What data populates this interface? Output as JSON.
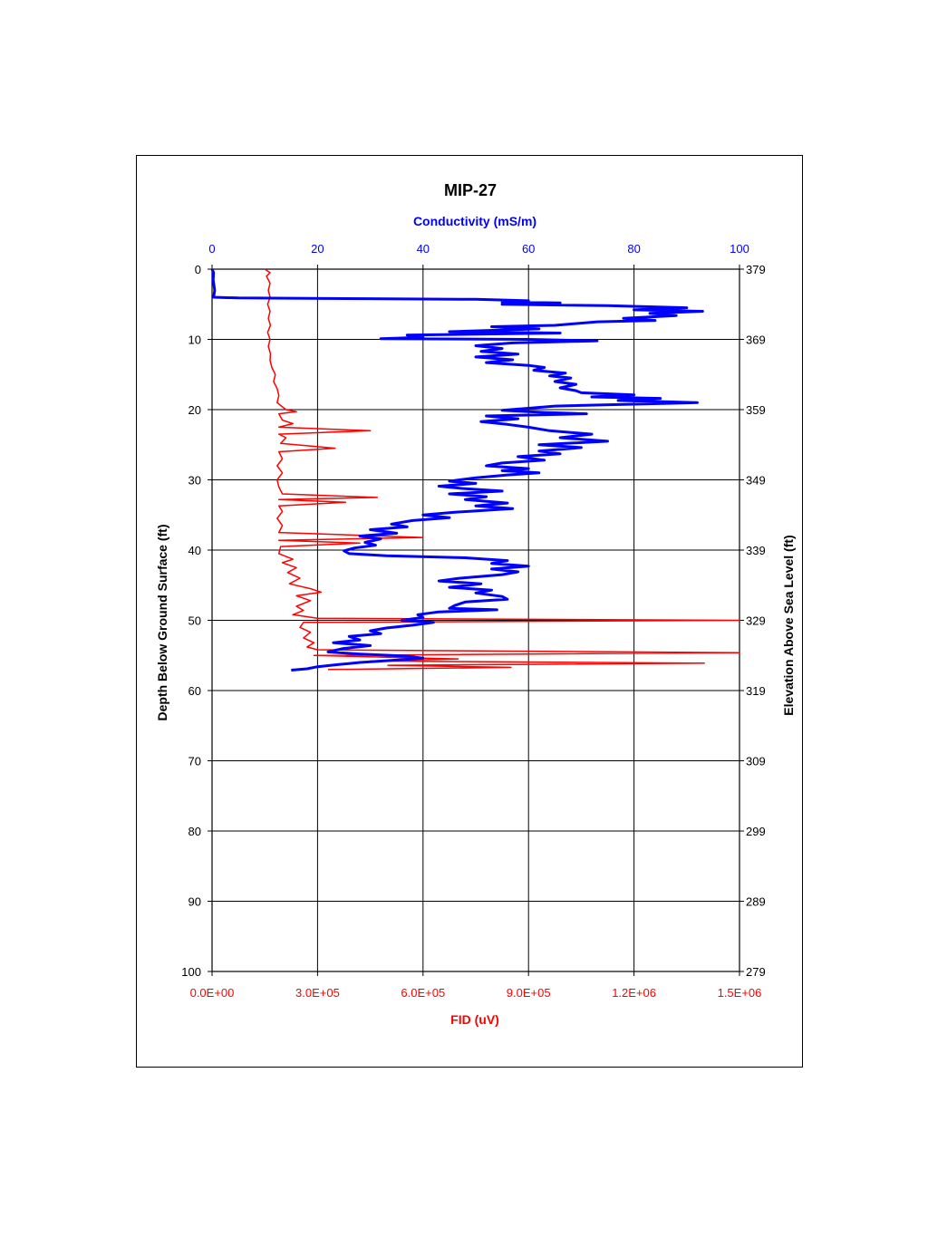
{
  "chart_data": {
    "type": "line",
    "title": "MIP-27",
    "top_axis": {
      "label": "Conductivity (mS/m)",
      "range": [
        0,
        100
      ],
      "ticks": [
        "0",
        "20",
        "40",
        "60",
        "80",
        "100"
      ],
      "color": "#0000ff"
    },
    "bottom_axis": {
      "label": "FID (uV)",
      "range": [
        0,
        1500000
      ],
      "ticks": [
        "0.0E+00",
        "3.0E+05",
        "6.0E+05",
        "9.0E+05",
        "1.2E+06",
        "1.5E+06"
      ],
      "color": "#ff0000"
    },
    "left_axis": {
      "label": "Depth Below Ground Surface (ft)",
      "range": [
        0,
        100
      ],
      "ticks": [
        "0",
        "10",
        "20",
        "30",
        "40",
        "50",
        "60",
        "70",
        "80",
        "90",
        "100"
      ],
      "inverted": true
    },
    "right_axis": {
      "label": "Elevation Above Sea Level (ft)",
      "ticks": [
        "379",
        "369",
        "359",
        "349",
        "339",
        "329",
        "319",
        "309",
        "299",
        "289",
        "279"
      ]
    },
    "grid": true,
    "series": [
      {
        "name": "Conductivity (mS/m)",
        "axis": "top",
        "color": "#0000ff",
        "points": [
          [
            0,
            0
          ],
          [
            0.3,
            0.5
          ],
          [
            0.2,
            1.5
          ],
          [
            0.5,
            3
          ],
          [
            0.3,
            4
          ],
          [
            5,
            4.1
          ],
          [
            30,
            4.2
          ],
          [
            50,
            4.3
          ],
          [
            60,
            4.5
          ],
          [
            55,
            4.7
          ],
          [
            66,
            4.8
          ],
          [
            55,
            5
          ],
          [
            75,
            5.2
          ],
          [
            90,
            5.5
          ],
          [
            80,
            5.8
          ],
          [
            93,
            6
          ],
          [
            83,
            6.3
          ],
          [
            88,
            6.6
          ],
          [
            78,
            7
          ],
          [
            84,
            7.3
          ],
          [
            73,
            7.5
          ],
          [
            65,
            8
          ],
          [
            53,
            8.2
          ],
          [
            62,
            8.5
          ],
          [
            45,
            8.9
          ],
          [
            66,
            9.1
          ],
          [
            37,
            9.4
          ],
          [
            40,
            9.7
          ],
          [
            32,
            9.9
          ],
          [
            60,
            10
          ],
          [
            73,
            10.2
          ],
          [
            57,
            10.5
          ],
          [
            50,
            10.9
          ],
          [
            55,
            11.3
          ],
          [
            51,
            11.7
          ],
          [
            58,
            12.1
          ],
          [
            50,
            12.5
          ],
          [
            57,
            12.9
          ],
          [
            52,
            13.3
          ],
          [
            60,
            13.7
          ],
          [
            63,
            14
          ],
          [
            61,
            14.4
          ],
          [
            67,
            14.8
          ],
          [
            64,
            15.2
          ],
          [
            68,
            15.5
          ],
          [
            65,
            16
          ],
          [
            69,
            16.4
          ],
          [
            66,
            16.9
          ],
          [
            69,
            17.3
          ],
          [
            70,
            17.6
          ],
          [
            80,
            17.9
          ],
          [
            72,
            18.2
          ],
          [
            85,
            18.4
          ],
          [
            77,
            18.7
          ],
          [
            92,
            19
          ],
          [
            65,
            19.5
          ],
          [
            60,
            19.8
          ],
          [
            55,
            20.1
          ],
          [
            63,
            20.4
          ],
          [
            71,
            20.6
          ],
          [
            52,
            20.9
          ],
          [
            58,
            21.3
          ],
          [
            51,
            21.7
          ],
          [
            56,
            22.1
          ],
          [
            60,
            22.5
          ],
          [
            64,
            23
          ],
          [
            72,
            23.5
          ],
          [
            66,
            24
          ],
          [
            75,
            24.5
          ],
          [
            62,
            25
          ],
          [
            70,
            25.4
          ],
          [
            62,
            25.9
          ],
          [
            66,
            26.3
          ],
          [
            58,
            26.7
          ],
          [
            63,
            27.2
          ],
          [
            55,
            27.6
          ],
          [
            52,
            28
          ],
          [
            60,
            28.4
          ],
          [
            55,
            28.7
          ],
          [
            62,
            29
          ],
          [
            56,
            29.3
          ],
          [
            50,
            29.7
          ],
          [
            45,
            30.2
          ],
          [
            50,
            30.5
          ],
          [
            43,
            30.9
          ],
          [
            47,
            31.2
          ],
          [
            55,
            31.6
          ],
          [
            45,
            32
          ],
          [
            52,
            32.4
          ],
          [
            48,
            32.8
          ],
          [
            56,
            33.3
          ],
          [
            50,
            33.7
          ],
          [
            57,
            34.1
          ],
          [
            46,
            34.6
          ],
          [
            40,
            35
          ],
          [
            45,
            35.4
          ],
          [
            38,
            35.8
          ],
          [
            34,
            36.3
          ],
          [
            37,
            36.7
          ],
          [
            30,
            37.1
          ],
          [
            35,
            37.6
          ],
          [
            28,
            38
          ],
          [
            32,
            38.4
          ],
          [
            29,
            38.9
          ],
          [
            31,
            39.3
          ],
          [
            27,
            39.7
          ],
          [
            25,
            40.1
          ],
          [
            26,
            40.5
          ],
          [
            33,
            40.8
          ],
          [
            48,
            41.1
          ],
          [
            56,
            41.5
          ],
          [
            53,
            41.9
          ],
          [
            60,
            42.3
          ],
          [
            53,
            42.7
          ],
          [
            58,
            43.1
          ],
          [
            55,
            43.5
          ],
          [
            47,
            44
          ],
          [
            43,
            44.4
          ],
          [
            51,
            44.8
          ],
          [
            45,
            45.3
          ],
          [
            53,
            45.7
          ],
          [
            50,
            46.1
          ],
          [
            55,
            46.6
          ],
          [
            56,
            47
          ],
          [
            48,
            47.4
          ],
          [
            46,
            47.9
          ],
          [
            45,
            48.3
          ],
          [
            54,
            48.5
          ],
          [
            43,
            48.8
          ],
          [
            39,
            49.2
          ],
          [
            40,
            49.6
          ],
          [
            36,
            50
          ],
          [
            42,
            50.3
          ],
          [
            38,
            50.7
          ],
          [
            33,
            51.1
          ],
          [
            30,
            51.5
          ],
          [
            32,
            51.9
          ],
          [
            26,
            52.3
          ],
          [
            28,
            52.8
          ],
          [
            23,
            53.2
          ],
          [
            30,
            53.6
          ],
          [
            25,
            54
          ],
          [
            22,
            54.5
          ],
          [
            28,
            54.8
          ],
          [
            37,
            55.1
          ],
          [
            40,
            55.4
          ],
          [
            34,
            55.7
          ],
          [
            28,
            56
          ],
          [
            24,
            56.3
          ],
          [
            20,
            56.6
          ],
          [
            18,
            56.9
          ],
          [
            15,
            57.1
          ]
        ]
      },
      {
        "name": "FID (uV)",
        "axis": "bottom",
        "color": "#ff0000",
        "points": [
          [
            150000,
            0
          ],
          [
            165000,
            0.5
          ],
          [
            155000,
            1
          ],
          [
            165000,
            2
          ],
          [
            160000,
            3
          ],
          [
            165000,
            4
          ],
          [
            158000,
            5
          ],
          [
            165000,
            6
          ],
          [
            160000,
            7
          ],
          [
            166000,
            8
          ],
          [
            158000,
            9
          ],
          [
            165000,
            10
          ],
          [
            160000,
            11
          ],
          [
            166000,
            12
          ],
          [
            165000,
            13
          ],
          [
            170000,
            14
          ],
          [
            180000,
            15
          ],
          [
            175000,
            16
          ],
          [
            185000,
            17
          ],
          [
            190000,
            18
          ],
          [
            185000,
            19
          ],
          [
            210000,
            20
          ],
          [
            240000,
            20.3
          ],
          [
            190000,
            20.6
          ],
          [
            200000,
            21.5
          ],
          [
            230000,
            22
          ],
          [
            190000,
            22.5
          ],
          [
            450000,
            23
          ],
          [
            190000,
            23.5
          ],
          [
            210000,
            24
          ],
          [
            195000,
            24.8
          ],
          [
            350000,
            25.5
          ],
          [
            190000,
            26
          ],
          [
            200000,
            27
          ],
          [
            185000,
            28
          ],
          [
            200000,
            29
          ],
          [
            185000,
            30
          ],
          [
            190000,
            31
          ],
          [
            200000,
            32
          ],
          [
            470000,
            32.5
          ],
          [
            190000,
            32.8
          ],
          [
            380000,
            33.2
          ],
          [
            190000,
            33.7
          ],
          [
            200000,
            34.5
          ],
          [
            185000,
            35.5
          ],
          [
            200000,
            36.5
          ],
          [
            190000,
            37.5
          ],
          [
            600000,
            38.2
          ],
          [
            190000,
            38.6
          ],
          [
            420000,
            39
          ],
          [
            195000,
            39.5
          ],
          [
            190000,
            40.5
          ],
          [
            230000,
            41.3
          ],
          [
            200000,
            41.8
          ],
          [
            240000,
            42.5
          ],
          [
            215000,
            43.2
          ],
          [
            250000,
            44
          ],
          [
            220000,
            44.8
          ],
          [
            280000,
            45.5
          ],
          [
            310000,
            46
          ],
          [
            240000,
            46.5
          ],
          [
            280000,
            47.2
          ],
          [
            240000,
            48
          ],
          [
            260000,
            48.6
          ],
          [
            230000,
            49.2
          ],
          [
            300000,
            49.7
          ],
          [
            1500000,
            50
          ],
          [
            260000,
            50.3
          ],
          [
            250000,
            51
          ],
          [
            280000,
            51.7
          ],
          [
            260000,
            52.5
          ],
          [
            290000,
            53.2
          ],
          [
            270000,
            53.8
          ],
          [
            300000,
            54.2
          ],
          [
            1500000,
            54.6
          ],
          [
            290000,
            55
          ],
          [
            700000,
            55.5
          ],
          [
            450000,
            55.8
          ],
          [
            1400000,
            56.1
          ],
          [
            500000,
            56.4
          ],
          [
            850000,
            56.7
          ],
          [
            330000,
            57
          ]
        ]
      }
    ]
  }
}
